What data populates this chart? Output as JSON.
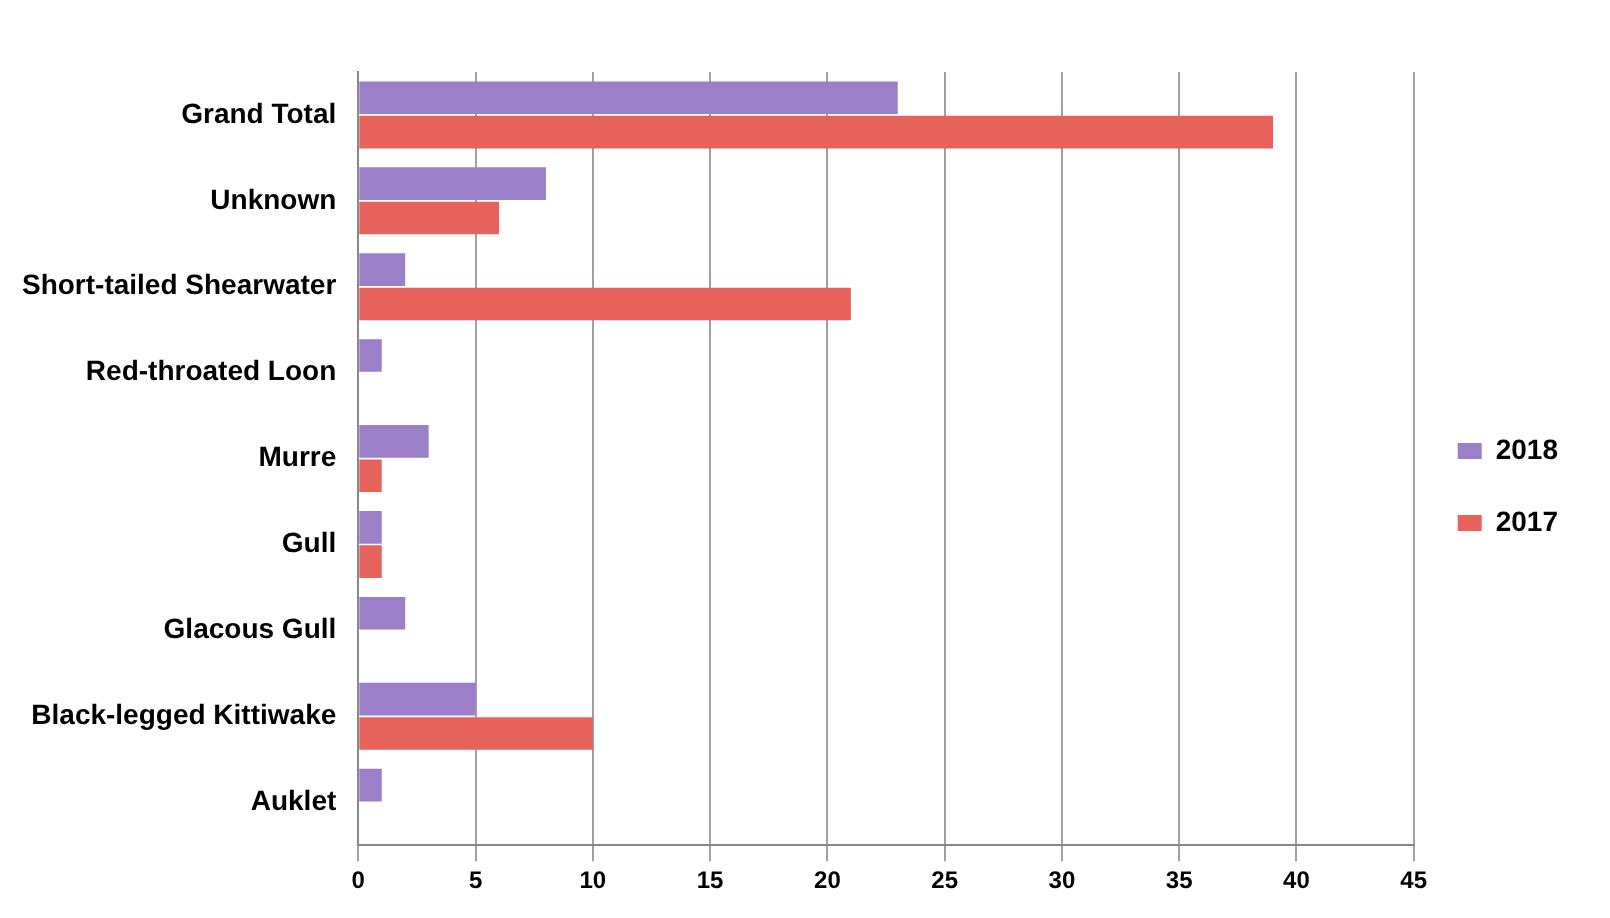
{
  "chart_data": {
    "type": "bar",
    "orientation": "horizontal",
    "categories": [
      "Grand Total",
      "Unknown",
      "Short-tailed Shearwater",
      "Red-throated Loon",
      "Murre",
      "Gull",
      "Glacous Gull",
      "Black-legged Kittiwake",
      "Auklet"
    ],
    "series": [
      {
        "name": "2018",
        "color": "#9b80c9",
        "values": [
          23,
          8,
          2,
          1,
          3,
          1,
          2,
          5,
          1
        ]
      },
      {
        "name": "2017",
        "color": "#e8625c",
        "values": [
          39,
          6,
          21,
          0,
          1,
          1,
          0,
          10,
          0
        ]
      }
    ],
    "xlim": [
      0,
      45
    ],
    "xticks": [
      0,
      5,
      10,
      15,
      20,
      25,
      30,
      35,
      40,
      45
    ],
    "grid": "x",
    "legend": "right"
  }
}
